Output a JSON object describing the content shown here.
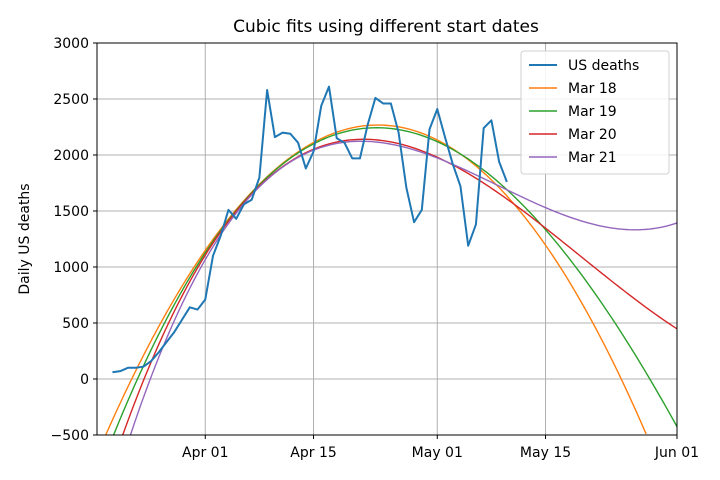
{
  "chart_data": {
    "type": "line",
    "title": "Cubic fits using different start dates",
    "xlabel": "",
    "ylabel": "Daily US deaths",
    "x_unit": "date (2020)",
    "xlim": [
      "2020-03-18",
      "2020-06-01"
    ],
    "ylim": [
      -500,
      3000
    ],
    "yticks": [
      -500,
      0,
      500,
      1000,
      1500,
      2000,
      2500,
      3000
    ],
    "xticks": [
      {
        "date": "2020-04-01",
        "label": "Apr 01"
      },
      {
        "date": "2020-04-15",
        "label": "Apr 15"
      },
      {
        "date": "2020-05-01",
        "label": "May 01"
      },
      {
        "date": "2020-05-15",
        "label": "May 15"
      },
      {
        "date": "2020-06-01",
        "label": "Jun 01"
      }
    ],
    "grid": true,
    "legend_position": "top-right",
    "series": [
      {
        "name": "US deaths",
        "color": "#1f77b4",
        "kind": "observed",
        "points": [
          [
            "2020-03-20",
            60
          ],
          [
            "2020-03-21",
            70
          ],
          [
            "2020-03-22",
            100
          ],
          [
            "2020-03-23",
            100
          ],
          [
            "2020-03-24",
            110
          ],
          [
            "2020-03-25",
            160
          ],
          [
            "2020-03-26",
            240
          ],
          [
            "2020-03-27",
            330
          ],
          [
            "2020-03-28",
            420
          ],
          [
            "2020-03-29",
            530
          ],
          [
            "2020-03-30",
            640
          ],
          [
            "2020-03-31",
            620
          ],
          [
            "2020-04-01",
            710
          ],
          [
            "2020-04-02",
            1100
          ],
          [
            "2020-04-03",
            1280
          ],
          [
            "2020-04-04",
            1510
          ],
          [
            "2020-04-05",
            1430
          ],
          [
            "2020-04-06",
            1560
          ],
          [
            "2020-04-07",
            1600
          ],
          [
            "2020-04-08",
            1800
          ],
          [
            "2020-04-09",
            2580
          ],
          [
            "2020-04-10",
            2160
          ],
          [
            "2020-04-11",
            2200
          ],
          [
            "2020-04-12",
            2190
          ],
          [
            "2020-04-13",
            2110
          ],
          [
            "2020-04-14",
            1880
          ],
          [
            "2020-04-15",
            2030
          ],
          [
            "2020-04-16",
            2440
          ],
          [
            "2020-04-17",
            2610
          ],
          [
            "2020-04-18",
            2150
          ],
          [
            "2020-04-19",
            2110
          ],
          [
            "2020-04-20",
            1970
          ],
          [
            "2020-04-21",
            1970
          ],
          [
            "2020-04-22",
            2270
          ],
          [
            "2020-04-23",
            2510
          ],
          [
            "2020-04-24",
            2460
          ],
          [
            "2020-04-25",
            2460
          ],
          [
            "2020-04-26",
            2200
          ],
          [
            "2020-04-27",
            1710
          ],
          [
            "2020-04-28",
            1400
          ],
          [
            "2020-04-29",
            1510
          ],
          [
            "2020-04-30",
            2230
          ],
          [
            "2020-05-01",
            2410
          ],
          [
            "2020-05-02",
            2160
          ],
          [
            "2020-05-03",
            1920
          ],
          [
            "2020-05-04",
            1720
          ],
          [
            "2020-05-05",
            1190
          ],
          [
            "2020-05-06",
            1380
          ],
          [
            "2020-05-07",
            2240
          ],
          [
            "2020-05-08",
            2310
          ],
          [
            "2020-05-09",
            1940
          ],
          [
            "2020-05-10",
            1760
          ]
        ]
      },
      {
        "name": "Mar 18",
        "color": "#ff7f0e",
        "kind": "cubic-fit",
        "points": [
          [
            "2020-03-19",
            -510
          ],
          [
            "2020-03-25",
            300
          ],
          [
            "2020-04-04",
            1490
          ],
          [
            "2020-04-24",
            2210
          ],
          [
            "2020-05-12",
            1510
          ],
          [
            "2020-05-28",
            -500
          ]
        ]
      },
      {
        "name": "Mar 19",
        "color": "#2ca02c",
        "kind": "cubic-fit",
        "points": [
          [
            "2020-03-20",
            -510
          ],
          [
            "2020-03-26",
            350
          ],
          [
            "2020-04-04",
            1480
          ],
          [
            "2020-04-23",
            2200
          ],
          [
            "2020-05-12",
            1580
          ],
          [
            "2020-06-01",
            -430
          ]
        ]
      },
      {
        "name": "Mar 20",
        "color": "#d62728",
        "kind": "cubic-fit",
        "points": [
          [
            "2020-03-21",
            -510
          ],
          [
            "2020-03-27",
            380
          ],
          [
            "2020-04-05",
            1500
          ],
          [
            "2020-04-22",
            2190
          ],
          [
            "2020-05-15",
            1310
          ],
          [
            "2020-06-01",
            460
          ]
        ]
      },
      {
        "name": "Mar 21",
        "color": "#9467bd",
        "kind": "cubic-fit",
        "points": [
          [
            "2020-03-22",
            -510
          ],
          [
            "2020-03-28",
            440
          ],
          [
            "2020-04-06",
            1550
          ],
          [
            "2020-04-21",
            2190
          ],
          [
            "2020-05-17",
            1430
          ],
          [
            "2020-06-01",
            1410
          ]
        ]
      }
    ]
  }
}
